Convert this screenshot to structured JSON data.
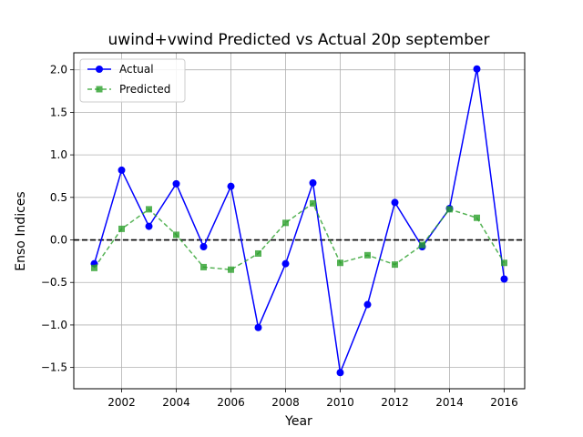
{
  "chart_data": {
    "type": "line",
    "title": "uwind+vwind Predicted vs Actual 20p september",
    "xlabel": "Year",
    "ylabel": "Enso Indices",
    "x": [
      2001,
      2002,
      2003,
      2004,
      2005,
      2006,
      2007,
      2008,
      2009,
      2010,
      2011,
      2012,
      2013,
      2014,
      2015,
      2016
    ],
    "xlim": [
      2000.25,
      2016.75
    ],
    "ylim": [
      -1.75,
      2.2
    ],
    "xticks": [
      2002,
      2004,
      2006,
      2008,
      2010,
      2012,
      2014,
      2016
    ],
    "yticks": [
      -1.5,
      -1.0,
      -0.5,
      0.0,
      0.5,
      1.0,
      1.5,
      2.0
    ],
    "xtick_labels": [
      "2002",
      "2004",
      "2006",
      "2008",
      "2010",
      "2012",
      "2014",
      "2016"
    ],
    "ytick_labels": [
      "−1.5",
      "−1.0",
      "−0.5",
      "0.0",
      "0.5",
      "1.0",
      "1.5",
      "2.0"
    ],
    "grid": true,
    "legend_position": "top-left",
    "reference_line": {
      "y": 0.0,
      "style": "dashed",
      "color": "#000000"
    },
    "series": [
      {
        "name": "Actual",
        "color": "#0000ff",
        "line_style": "solid",
        "marker": "circle",
        "values": [
          -0.28,
          0.82,
          0.16,
          0.66,
          -0.08,
          0.63,
          -1.03,
          -0.28,
          0.67,
          -1.56,
          -0.76,
          0.44,
          -0.08,
          0.37,
          2.01,
          -0.46
        ]
      },
      {
        "name": "Predicted",
        "color": "#2ca02c",
        "line_style": "dashed",
        "marker": "square",
        "values": [
          -0.33,
          0.13,
          0.36,
          0.06,
          -0.32,
          -0.35,
          -0.16,
          0.2,
          0.43,
          -0.27,
          -0.18,
          -0.29,
          -0.06,
          0.36,
          0.26,
          -0.27
        ]
      }
    ]
  }
}
